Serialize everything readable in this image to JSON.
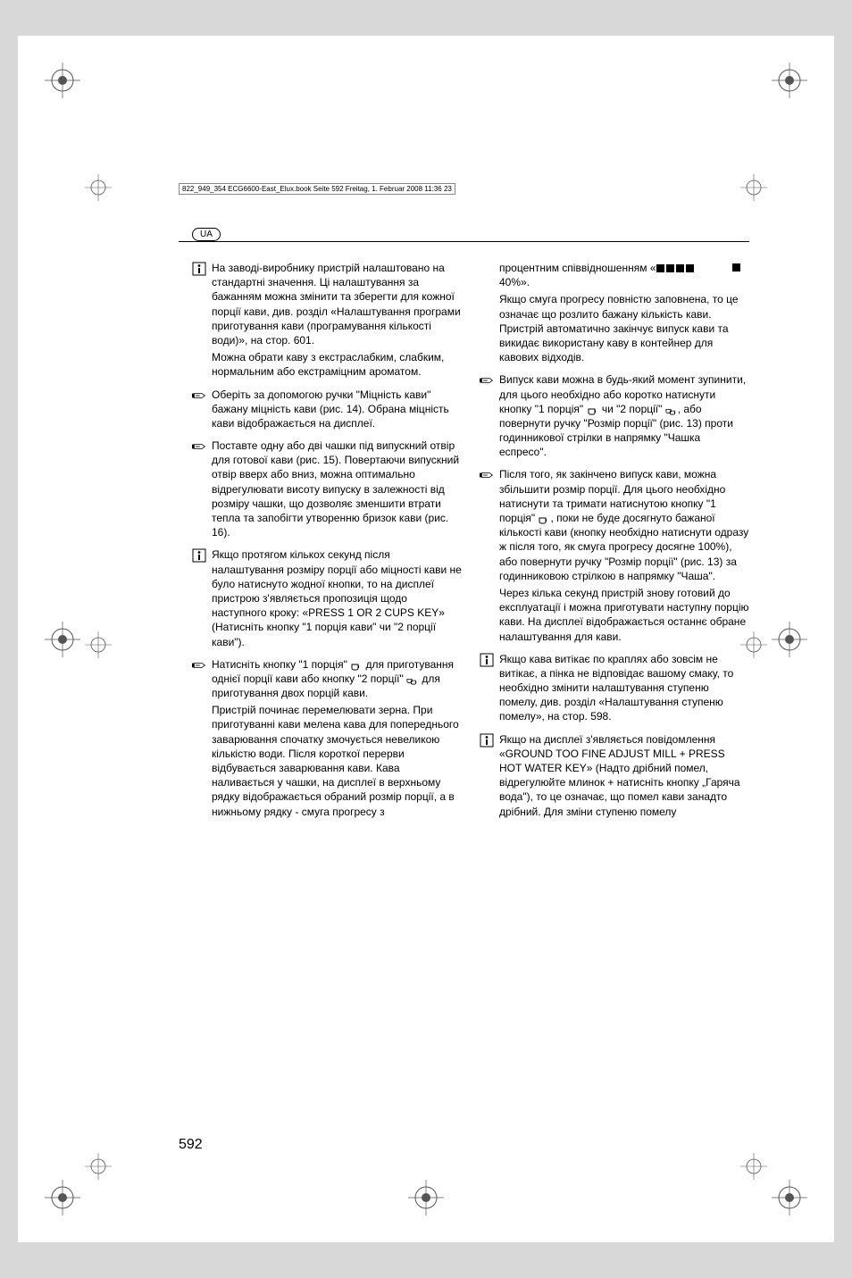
{
  "header": {
    "file_note": "822_949_354 ECG6600-East_Elux.book  Seite 592  Freitag, 1. Februar 2008  11:36 23",
    "lang_code": "UA"
  },
  "progress": {
    "filled_count": 4,
    "label_suffix": "40%»."
  },
  "left_column": [
    {
      "marker": "info",
      "paragraphs": [
        "На заводі-виробнику пристрій налаштовано на стандартні значення. Ці налаштування за бажанням можна змінити та зберегти для кожної порції кави, див. розділ «Налаштування програми приготування кави (програмування кількості води)», на стор. 601.",
        "Можна обрати каву з екстраслабким, слабким, нормальним або екстраміцним ароматом."
      ]
    },
    {
      "marker": "hand",
      "paragraphs": [
        "Оберіть за допомогою ручки \"Міцність кави\" бажану міцність кави (рис. 14). Обрана міцність кави відображається на дисплеї."
      ]
    },
    {
      "marker": "hand",
      "paragraphs": [
        "Поставте одну або дві чашки під випускний отвір для готової кави (рис. 15). Повертаючи випускний отвір вверх або вниз, можна оптимально відрегулювати висоту випуску в залежності від розміру чашки, що дозволяє зменшити втрати тепла та запобігти утворенню бризок кави (рис. 16)."
      ]
    },
    {
      "marker": "info",
      "paragraphs": [
        "Якщо протягом кількох секунд після налаштування розміру порції або міцності кави не було натиснуто жодної кнопки, то на дисплеї пристрою з'являється пропозиція щодо наступного кроку: «PRESS 1 OR 2 CUPS KEY» (Натисніть кнопку \"1 порція кави\" чи \"2 порції кави\")."
      ]
    },
    {
      "marker": "hand",
      "paragraphs": [
        "Натисніть кнопку \"1 порція\" {cup1} для приготування однієї порції кави або кнопку \"2 порції\" {cup2} для приготування двох порцій кави.",
        "Пристрій починає перемелювати зерна. При приготуванні кави мелена кава для попереднього заварювання спочатку змочується невеликою кількістю води. Після короткої перерви відбувається заварювання кави. Кава наливається у чашки, на дисплеї в верхньому рядку відображається обраний розмір порції, а в нижньому рядку - смуга прогресу з"
      ]
    }
  ],
  "right_column": [
    {
      "marker": "none",
      "paragraphs": [
        "процентним співвідношенням «{progress}",
        "Якщо смуга прогресу повністю заповнена, то це означає що розлито бажану кількість кави. Пристрій автоматично закінчує випуск кави та викидає використану каву в контейнер для кавових відходів."
      ]
    },
    {
      "marker": "hand",
      "paragraphs": [
        "Випуск кави можна в будь-який момент зупинити, для цього необхідно або коротко натиснути кнопку \"1 порція\" {cup1} чи \"2 порції\" {cup2}, або повернути ручку \"Розмір порції\" (рис. 13) проти годинникової стрілки в напрямку \"Чашка еспресо\"."
      ]
    },
    {
      "marker": "hand",
      "paragraphs": [
        "Після того, як закінчено випуск кави, можна збільшити розмір порції. Для цього необхідно натиснути та тримати натиснутою кнопку \"1 порція\" {cup1}, поки не буде досягнуто бажаної кількості кави (кнопку необхідно натиснути одразу ж після того, як смуга прогресу досягне 100%), або повернути ручку \"Розмір порції\" (рис. 13) за годинниковою стрілкою в напрямку \"Чаша\".",
        "Через кілька секунд пристрій знову готовий до експлуатації і можна приготувати наступну порцію кави. На дисплеї відображається останнє обране налаштування для кави."
      ]
    },
    {
      "marker": "info",
      "paragraphs": [
        "Якщо кава витікає по краплях або зовсім не витікає, а пінка не відповідає вашому смаку, то необхідно змінити налаштування ступеню помелу, див. розділ «Налаштування ступеню помелу», на стор. 598."
      ]
    },
    {
      "marker": "info",
      "paragraphs": [
        "Якщо на дисплеї з'являється повідомлення «GROUND TOO FINE ADJUST MILL + PRESS HOT WATER KEY» (Надто дрібний помел, відрегулюйте млинок + натисніть кнопку „Гаряча вода\"), то це означає, що помел кави занадто дрібний. Для зміни ступеню помелу"
      ]
    }
  ],
  "page_number": "592"
}
